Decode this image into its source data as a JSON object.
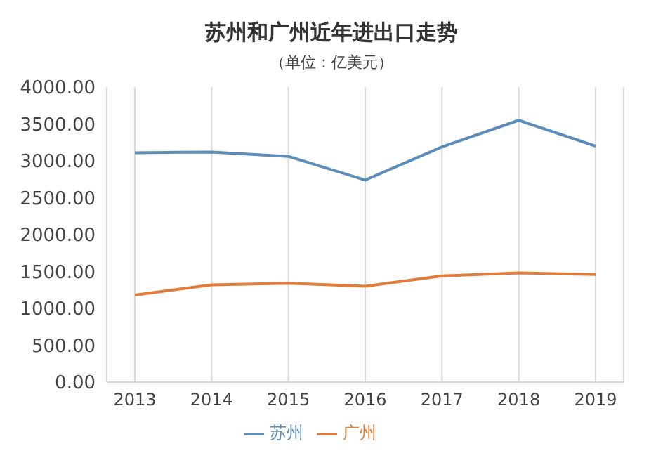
{
  "chart_data": {
    "type": "line",
    "title": "苏州和广州近年进出口走势",
    "subtitle": "（单位：亿美元）",
    "categories": [
      "2013",
      "2014",
      "2015",
      "2016",
      "2017",
      "2018",
      "2019"
    ],
    "series": [
      {
        "name": "苏州",
        "color": "#5b8db8",
        "values": [
          3110,
          3120,
          3060,
          2740,
          3190,
          3550,
          3200
        ]
      },
      {
        "name": "广州",
        "color": "#e07b39",
        "values": [
          1180,
          1320,
          1340,
          1300,
          1440,
          1480,
          1460
        ]
      }
    ],
    "ylim": [
      0,
      4000
    ],
    "yticks": [
      {
        "value": 0,
        "label": "0.00"
      },
      {
        "value": 500,
        "label": "500.00"
      },
      {
        "value": 1000,
        "label": "1000.00"
      },
      {
        "value": 1500,
        "label": "1500.00"
      },
      {
        "value": 2000,
        "label": "2000.00"
      },
      {
        "value": 2500,
        "label": "2500.00"
      },
      {
        "value": 3000,
        "label": "3000.00"
      },
      {
        "value": 3500,
        "label": "3500.00"
      },
      {
        "value": 4000,
        "label": "4000.00"
      }
    ],
    "grid": "x",
    "legend": "bottom",
    "marker": "none",
    "line_style": "solid"
  }
}
